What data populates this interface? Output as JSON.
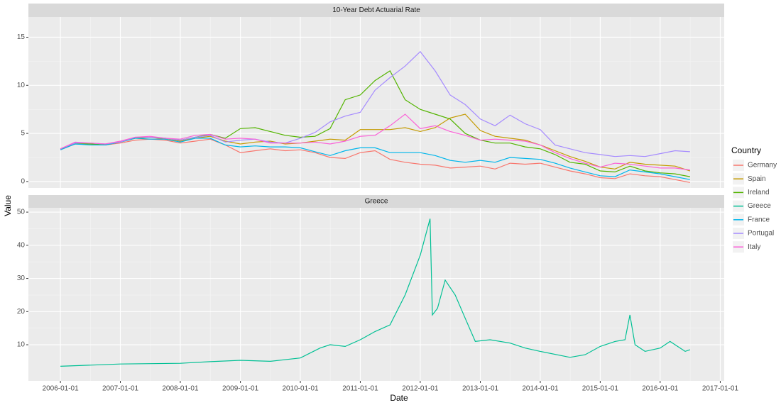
{
  "axis_labels": {
    "x": "Date",
    "y": "Value"
  },
  "legend_title": "Country",
  "chart_data": [
    {
      "type": "line",
      "title": "10-Year Debt Actuarial Rate",
      "x": [
        "2006-01-01",
        "2006-04-01",
        "2006-07-01",
        "2006-10-01",
        "2007-01-01",
        "2007-04-01",
        "2007-07-01",
        "2007-10-01",
        "2008-01-01",
        "2008-04-01",
        "2008-07-01",
        "2008-10-01",
        "2009-01-01",
        "2009-04-01",
        "2009-07-01",
        "2009-10-01",
        "2010-01-01",
        "2010-04-01",
        "2010-07-01",
        "2010-10-01",
        "2011-01-01",
        "2011-04-01",
        "2011-07-01",
        "2011-10-01",
        "2012-01-01",
        "2012-04-01",
        "2012-07-01",
        "2012-10-01",
        "2013-01-01",
        "2013-04-01",
        "2013-07-01",
        "2013-10-01",
        "2014-01-01",
        "2014-04-01",
        "2014-07-01",
        "2014-10-01",
        "2015-01-01",
        "2015-04-01",
        "2015-07-01",
        "2015-10-01",
        "2016-01-01",
        "2016-04-01",
        "2016-07-01"
      ],
      "series": [
        {
          "name": "Germany",
          "color": "#f8766d",
          "values": [
            3.3,
            3.9,
            3.9,
            3.8,
            4.0,
            4.3,
            4.4,
            4.3,
            4.0,
            4.2,
            4.4,
            3.8,
            3.0,
            3.2,
            3.4,
            3.2,
            3.3,
            3.0,
            2.5,
            2.4,
            3.0,
            3.2,
            2.3,
            2.0,
            1.8,
            1.7,
            1.4,
            1.5,
            1.6,
            1.3,
            1.9,
            1.8,
            1.9,
            1.5,
            1.1,
            0.8,
            0.4,
            0.3,
            0.8,
            0.6,
            0.5,
            0.2,
            -0.1
          ]
        },
        {
          "name": "Spain",
          "color": "#c49a00",
          "values": [
            3.4,
            4.0,
            3.9,
            3.8,
            4.1,
            4.5,
            4.6,
            4.4,
            4.2,
            4.5,
            4.7,
            4.2,
            3.9,
            4.1,
            4.2,
            3.9,
            4.0,
            4.2,
            4.4,
            4.3,
            5.4,
            5.4,
            5.4,
            5.6,
            5.2,
            5.6,
            6.6,
            7.0,
            5.3,
            4.7,
            4.5,
            4.3,
            3.8,
            3.2,
            2.6,
            2.1,
            1.5,
            1.3,
            2.0,
            1.8,
            1.7,
            1.6,
            1.1
          ]
        },
        {
          "name": "Ireland",
          "color": "#53b400",
          "values": [
            3.4,
            3.9,
            3.9,
            3.8,
            4.1,
            4.5,
            4.6,
            4.5,
            4.3,
            4.6,
            4.9,
            4.5,
            5.5,
            5.6,
            5.2,
            4.8,
            4.6,
            4.7,
            5.5,
            8.5,
            9.0,
            10.5,
            11.5,
            8.5,
            7.5,
            7.0,
            6.5,
            5.0,
            4.3,
            4.0,
            4.0,
            3.6,
            3.4,
            2.8,
            2.0,
            1.8,
            1.1,
            1.0,
            1.6,
            1.1,
            0.9,
            0.8,
            0.5
          ]
        },
        {
          "name": "France",
          "color": "#00b6eb",
          "values": [
            3.3,
            3.9,
            3.8,
            3.8,
            4.1,
            4.5,
            4.4,
            4.4,
            4.1,
            4.5,
            4.5,
            3.8,
            3.6,
            3.7,
            3.6,
            3.6,
            3.5,
            3.1,
            2.7,
            3.2,
            3.5,
            3.5,
            3.0,
            3.0,
            3.0,
            2.7,
            2.2,
            2.0,
            2.2,
            2.0,
            2.5,
            2.4,
            2.3,
            1.9,
            1.4,
            1.0,
            0.6,
            0.5,
            1.2,
            1.0,
            0.8,
            0.5,
            0.2
          ]
        },
        {
          "name": "Portugal",
          "color": "#a58aff",
          "values": [
            3.4,
            4.0,
            4.0,
            3.9,
            4.1,
            4.6,
            4.6,
            4.5,
            4.3,
            4.6,
            4.8,
            4.1,
            4.3,
            4.4,
            4.1,
            4.0,
            4.5,
            5.1,
            6.2,
            6.8,
            7.2,
            9.5,
            10.8,
            12.0,
            13.5,
            11.5,
            9.0,
            8.0,
            6.5,
            5.8,
            6.9,
            6.0,
            5.4,
            3.8,
            3.4,
            3.0,
            2.8,
            2.6,
            2.7,
            2.6,
            2.9,
            3.2,
            3.1
          ]
        },
        {
          "name": "Italy",
          "color": "#fb61d7",
          "values": [
            3.4,
            4.1,
            4.0,
            3.9,
            4.2,
            4.6,
            4.7,
            4.5,
            4.4,
            4.8,
            4.9,
            4.4,
            4.5,
            4.4,
            4.0,
            4.0,
            4.0,
            4.1,
            3.9,
            4.2,
            4.7,
            4.8,
            5.8,
            7.0,
            5.5,
            5.8,
            5.2,
            4.8,
            4.3,
            4.4,
            4.3,
            4.2,
            3.8,
            3.0,
            2.4,
            1.9,
            1.5,
            1.9,
            1.8,
            1.6,
            1.4,
            1.4,
            1.2
          ]
        }
      ],
      "xlim": [
        "2005-06-20",
        "2017-01-25"
      ],
      "xticks": [
        "2006-01-01",
        "2007-01-01",
        "2008-01-01",
        "2009-01-01",
        "2010-01-01",
        "2011-01-01",
        "2012-01-01",
        "2013-01-01",
        "2014-01-01",
        "2015-01-01",
        "2016-01-01",
        "2017-01-01"
      ],
      "ylim": [
        -0.67,
        17.1
      ],
      "yticks": [
        0,
        5,
        10,
        15
      ],
      "grid": true
    },
    {
      "type": "line",
      "title": "Greece",
      "x": [
        "2006-01-01",
        "2007-01-01",
        "2008-01-01",
        "2008-07-01",
        "2009-01-01",
        "2009-07-01",
        "2010-01-01",
        "2010-05-01",
        "2010-07-01",
        "2010-10-01",
        "2011-01-01",
        "2011-04-01",
        "2011-07-01",
        "2011-10-01",
        "2012-01-01",
        "2012-03-01",
        "2012-03-15",
        "2012-04-15",
        "2012-06-01",
        "2012-08-01",
        "2012-10-01",
        "2012-12-01",
        "2013-03-01",
        "2013-07-01",
        "2013-10-01",
        "2014-01-01",
        "2014-07-01",
        "2014-10-01",
        "2015-01-01",
        "2015-04-01",
        "2015-06-01",
        "2015-07-01",
        "2015-08-01",
        "2015-10-01",
        "2016-01-01",
        "2016-03-01",
        "2016-06-01",
        "2016-07-01"
      ],
      "series": [
        {
          "name": "Greece",
          "color": "#00c094",
          "values": [
            3.5,
            4.2,
            4.4,
            4.9,
            5.3,
            5.0,
            6.0,
            9.0,
            10.0,
            9.5,
            11.5,
            14.0,
            16.0,
            25.0,
            37.0,
            48.0,
            19.0,
            21.0,
            29.5,
            25.0,
            18.0,
            11.0,
            11.5,
            10.5,
            9.0,
            8.0,
            6.2,
            7.0,
            9.5,
            11.0,
            11.5,
            19.0,
            10.0,
            8.0,
            9.0,
            11.0,
            8.0,
            8.5
          ]
        }
      ],
      "xlim": [
        "2005-06-20",
        "2017-01-25"
      ],
      "xticks": [
        "2006-01-01",
        "2007-01-01",
        "2008-01-01",
        "2009-01-01",
        "2010-01-01",
        "2011-01-01",
        "2012-01-01",
        "2013-01-01",
        "2014-01-01",
        "2015-01-01",
        "2016-01-01",
        "2017-01-01"
      ],
      "ylim": [
        -0.9,
        51.3
      ],
      "yticks": [
        10,
        20,
        30,
        40,
        50
      ],
      "grid": true
    }
  ]
}
